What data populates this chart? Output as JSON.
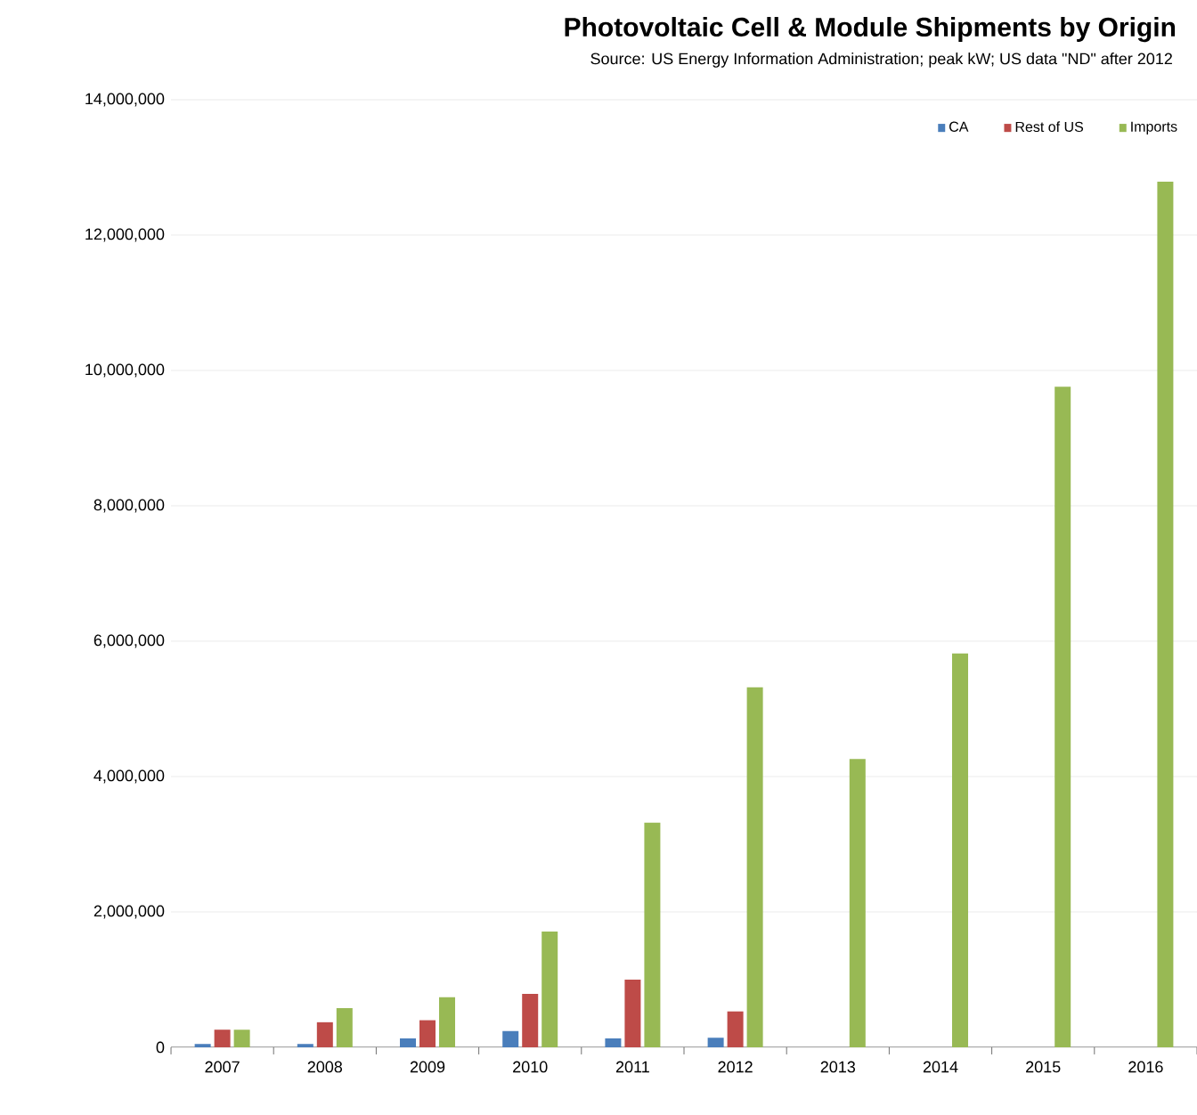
{
  "chart_data": {
    "type": "bar",
    "title": "Photovoltaic Cell & Module Shipments by Origin",
    "subtitle": "Source:  US Energy Information Administration; peak kW; US data \"ND\" after 2012",
    "categories": [
      "2007",
      "2008",
      "2009",
      "2010",
      "2011",
      "2012",
      "2013",
      "2014",
      "2015",
      "2016"
    ],
    "series": [
      {
        "name": "CA",
        "color": "#4a7ebb",
        "values": [
          50000,
          50000,
          130000,
          240000,
          130000,
          140000,
          null,
          null,
          null,
          null
        ]
      },
      {
        "name": "Rest of US",
        "color": "#be4b48",
        "values": [
          260000,
          370000,
          400000,
          790000,
          1000000,
          530000,
          null,
          null,
          null,
          null
        ]
      },
      {
        "name": "Imports",
        "color": "#98b954",
        "values": [
          260000,
          580000,
          740000,
          1710000,
          3320000,
          5320000,
          4260000,
          5820000,
          9760000,
          12790000
        ]
      }
    ],
    "ylim": [
      0,
      14000000
    ],
    "yticks": [
      {
        "value": 0,
        "label": "0"
      },
      {
        "value": 2000000,
        "label": "2,000,000"
      },
      {
        "value": 4000000,
        "label": "4,000,000"
      },
      {
        "value": 6000000,
        "label": "6,000,000"
      },
      {
        "value": 8000000,
        "label": "8,000,000"
      },
      {
        "value": 10000000,
        "label": "10,000,000"
      },
      {
        "value": 12000000,
        "label": "12,000,000"
      },
      {
        "value": 14000000,
        "label": "14,000,000"
      }
    ],
    "grid": "y",
    "legend": "top right"
  }
}
